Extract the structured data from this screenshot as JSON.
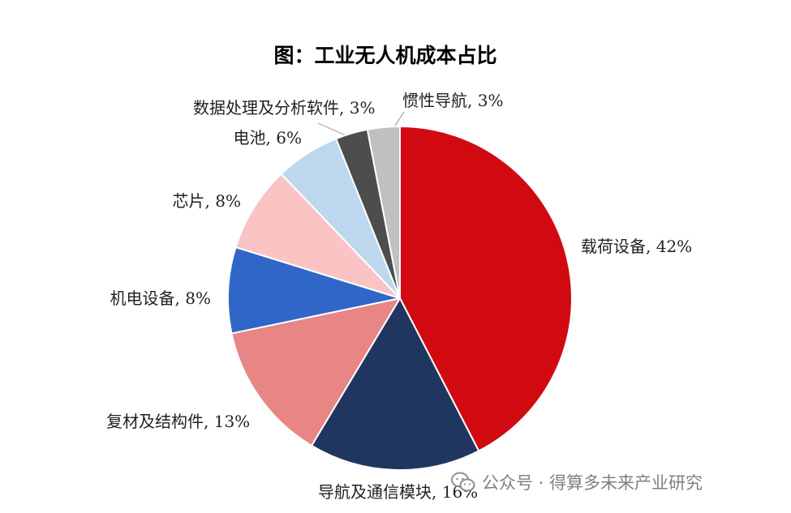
{
  "chart_data": {
    "type": "pie",
    "title": "图：工业无人机成本占比",
    "slices": [
      {
        "label": "载荷设备, 42%",
        "value": 42,
        "color": "#d10a12"
      },
      {
        "label": "导航及通信模块, 16%",
        "value": 16,
        "color": "#1f3760"
      },
      {
        "label": "复材及结构件, 13%",
        "value": 13,
        "color": "#e88585"
      },
      {
        "label": "机电设备, 8%",
        "value": 8,
        "color": "#3066c8"
      },
      {
        "label": "芯片, 8%",
        "value": 8,
        "color": "#fac4c4"
      },
      {
        "label": "电池, 6%",
        "value": 6,
        "color": "#bdd7ee"
      },
      {
        "label": "数据处理及分析软件, 3%",
        "value": 3,
        "color": "#4d4d4d"
      },
      {
        "label": "惯性导航, 3%",
        "value": 3,
        "color": "#c0c0c0"
      }
    ],
    "start_angle": "12 o'clock",
    "direction": "clockwise",
    "legend": "none (labels outside slices)"
  },
  "watermark": {
    "text": "公众号 · 得算多未来产业研究",
    "icon": "wechat-icon"
  }
}
